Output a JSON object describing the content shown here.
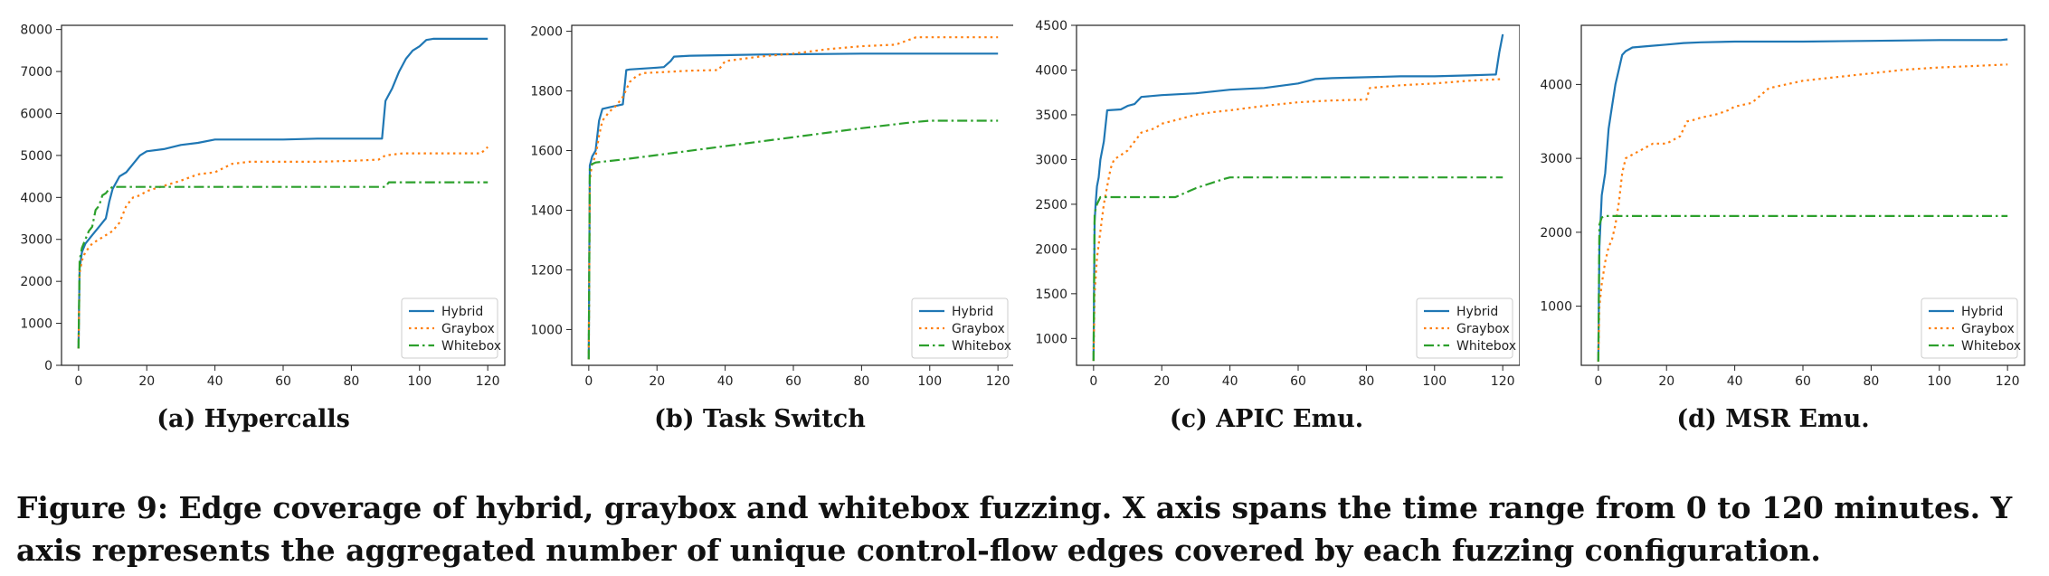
{
  "figure": {
    "caption": "Figure 9: Edge coverage of hybrid, graybox and whitebox fuzzing. X axis spans the time range from 0 to 120 minutes. Y axis represents the aggregated number of unique control-flow edges covered by each fuzzing configuration."
  },
  "colors": {
    "Hybrid": "#1f77b4",
    "Graybox": "#ff7f0e",
    "Whitebox": "#2ca02c"
  },
  "chart_data": [
    {
      "type": "line",
      "title": "(a) Hypercalls",
      "xlabel": "",
      "ylabel": "",
      "xlim": [
        -5,
        125
      ],
      "ylim": [
        0,
        8100
      ],
      "xticks": [
        0,
        20,
        40,
        60,
        80,
        100,
        120
      ],
      "yticks": [
        0,
        1000,
        2000,
        3000,
        4000,
        5000,
        6000,
        7000,
        8000
      ],
      "grid": false,
      "legend": "bottom-right",
      "series": [
        {
          "name": "Hybrid",
          "style": "solid",
          "x": [
            0,
            0.3,
            1,
            2,
            4,
            6,
            7,
            8,
            9,
            10,
            12,
            14,
            16,
            18,
            20,
            25,
            30,
            35,
            40,
            50,
            60,
            70,
            80,
            89,
            90,
            92,
            94,
            96,
            98,
            100,
            102,
            104,
            110,
            120
          ],
          "y": [
            400,
            2300,
            2700,
            2900,
            3100,
            3300,
            3400,
            3500,
            3900,
            4200,
            4500,
            4600,
            4800,
            5000,
            5100,
            5150,
            5250,
            5300,
            5380,
            5380,
            5380,
            5400,
            5400,
            5400,
            6300,
            6600,
            7000,
            7300,
            7500,
            7600,
            7750,
            7780,
            7780,
            7780
          ]
        },
        {
          "name": "Graybox",
          "style": "dotted",
          "x": [
            0,
            0.3,
            1,
            2,
            4,
            6,
            8,
            10,
            12,
            14,
            16,
            18,
            20,
            22,
            24,
            26,
            28,
            30,
            35,
            40,
            45,
            50,
            60,
            70,
            80,
            88,
            90,
            95,
            100,
            110,
            118,
            120
          ],
          "y": [
            400,
            2200,
            2500,
            2700,
            2900,
            3000,
            3100,
            3200,
            3400,
            3800,
            4000,
            4050,
            4150,
            4200,
            4250,
            4300,
            4350,
            4400,
            4550,
            4600,
            4800,
            4850,
            4850,
            4850,
            4870,
            4900,
            5000,
            5050,
            5050,
            5050,
            5050,
            5200
          ]
        },
        {
          "name": "Whitebox",
          "style": "dashdot",
          "x": [
            0,
            0.3,
            1,
            2,
            3,
            4,
            5,
            6,
            7,
            8,
            9,
            10,
            20,
            40,
            60,
            80,
            90,
            91,
            100,
            110,
            120
          ],
          "y": [
            400,
            2500,
            2800,
            3000,
            3200,
            3300,
            3700,
            3800,
            4050,
            4100,
            4200,
            4250,
            4250,
            4250,
            4250,
            4250,
            4250,
            4360,
            4360,
            4360,
            4360
          ]
        }
      ]
    },
    {
      "type": "line",
      "title": "(b) Task Switch",
      "xlabel": "",
      "ylabel": "",
      "xlim": [
        -5,
        125
      ],
      "ylim": [
        880,
        2020
      ],
      "xticks": [
        0,
        20,
        40,
        60,
        80,
        100,
        120
      ],
      "yticks": [
        1000,
        1200,
        1400,
        1600,
        1800,
        2000
      ],
      "grid": false,
      "legend": "bottom-right",
      "series": [
        {
          "name": "Hybrid",
          "style": "solid",
          "x": [
            0,
            0.3,
            1,
            2,
            3,
            4,
            6,
            8,
            10,
            11,
            12,
            16,
            20,
            22,
            24,
            25,
            30,
            40,
            50,
            60,
            70,
            80,
            90,
            100,
            110,
            120
          ],
          "y": [
            900,
            1550,
            1580,
            1600,
            1700,
            1740,
            1745,
            1750,
            1755,
            1870,
            1872,
            1875,
            1878,
            1880,
            1900,
            1915,
            1918,
            1920,
            1922,
            1923,
            1924,
            1925,
            1925,
            1925,
            1925,
            1925
          ]
        },
        {
          "name": "Graybox",
          "style": "dotted",
          "x": [
            0,
            0.3,
            1,
            2,
            3,
            4,
            6,
            8,
            10,
            12,
            14,
            16,
            20,
            30,
            38,
            40,
            50,
            60,
            70,
            80,
            90,
            96,
            100,
            110,
            120
          ],
          "y": [
            900,
            1500,
            1560,
            1580,
            1650,
            1700,
            1730,
            1750,
            1780,
            1830,
            1850,
            1860,
            1862,
            1868,
            1870,
            1900,
            1915,
            1925,
            1940,
            1950,
            1955,
            1980,
            1980,
            1980,
            1980
          ]
        },
        {
          "name": "Whitebox",
          "style": "dashdot",
          "x": [
            0,
            0.3,
            1,
            2,
            10,
            20,
            40,
            60,
            80,
            95,
            100,
            110,
            120
          ],
          "y": [
            900,
            1540,
            1555,
            1560,
            1570,
            1585,
            1615,
            1645,
            1675,
            1695,
            1700,
            1700,
            1700
          ]
        }
      ]
    },
    {
      "type": "line",
      "title": "(c) APIC Emu.",
      "xlabel": "",
      "ylabel": "",
      "xlim": [
        -5,
        125
      ],
      "ylim": [
        700,
        4500
      ],
      "xticks": [
        0,
        20,
        40,
        60,
        80,
        100,
        120
      ],
      "yticks": [
        1000,
        1500,
        2000,
        2500,
        3000,
        3500,
        4000,
        4500
      ],
      "grid": false,
      "legend": "bottom-right",
      "series": [
        {
          "name": "Hybrid",
          "style": "solid",
          "x": [
            0,
            0.3,
            0.6,
            1,
            1.5,
            2,
            3,
            4,
            8,
            10,
            12,
            14,
            20,
            30,
            40,
            50,
            60,
            65,
            70,
            80,
            90,
            100,
            110,
            118,
            119,
            120
          ],
          "y": [
            750,
            2300,
            2500,
            2700,
            2800,
            3000,
            3200,
            3550,
            3560,
            3600,
            3620,
            3700,
            3720,
            3740,
            3780,
            3800,
            3850,
            3900,
            3910,
            3920,
            3930,
            3930,
            3940,
            3950,
            4200,
            4400
          ]
        },
        {
          "name": "Graybox",
          "style": "dotted",
          "x": [
            0,
            0.3,
            1,
            2,
            3,
            4,
            5,
            6,
            8,
            10,
            12,
            14,
            18,
            20,
            25,
            30,
            35,
            40,
            50,
            60,
            70,
            80,
            81,
            90,
            100,
            110,
            120
          ],
          "y": [
            750,
            1500,
            1900,
            2200,
            2500,
            2700,
            2900,
            3000,
            3050,
            3100,
            3200,
            3300,
            3350,
            3400,
            3450,
            3500,
            3530,
            3550,
            3600,
            3640,
            3660,
            3670,
            3800,
            3830,
            3850,
            3880,
            3900
          ]
        },
        {
          "name": "Whitebox",
          "style": "dashdot",
          "x": [
            0,
            0.3,
            1,
            2,
            10,
            20,
            24,
            30,
            38,
            40,
            60,
            80,
            100,
            120
          ],
          "y": [
            750,
            2400,
            2500,
            2580,
            2580,
            2580,
            2580,
            2680,
            2780,
            2800,
            2800,
            2800,
            2800,
            2800
          ]
        }
      ]
    },
    {
      "type": "line",
      "title": "(d) MSR Emu.",
      "xlabel": "",
      "ylabel": "",
      "xlim": [
        -5,
        125
      ],
      "ylim": [
        200,
        4800
      ],
      "xticks": [
        0,
        20,
        40,
        60,
        80,
        100,
        120
      ],
      "yticks": [
        1000,
        2000,
        3000,
        4000
      ],
      "grid": false,
      "legend": "bottom-right",
      "series": [
        {
          "name": "Hybrid",
          "style": "solid",
          "x": [
            0,
            0.3,
            1,
            2,
            3,
            4,
            5,
            6,
            7,
            8,
            10,
            15,
            20,
            25,
            30,
            40,
            60,
            80,
            100,
            110,
            118,
            120
          ],
          "y": [
            250,
            1800,
            2500,
            2800,
            3400,
            3700,
            4000,
            4200,
            4400,
            4450,
            4500,
            4520,
            4540,
            4560,
            4570,
            4580,
            4580,
            4590,
            4600,
            4600,
            4600,
            4610
          ]
        },
        {
          "name": "Graybox",
          "style": "dotted",
          "x": [
            0,
            0.3,
            1,
            2,
            3,
            4,
            5,
            6,
            7,
            8,
            10,
            12,
            14,
            16,
            20,
            24,
            26,
            28,
            30,
            35,
            38,
            40,
            45,
            50,
            55,
            60,
            70,
            80,
            90,
            100,
            110,
            120
          ],
          "y": [
            250,
            1000,
            1300,
            1600,
            1800,
            1900,
            2100,
            2400,
            2800,
            3000,
            3050,
            3100,
            3150,
            3200,
            3200,
            3300,
            3500,
            3520,
            3550,
            3600,
            3650,
            3700,
            3750,
            3950,
            4000,
            4050,
            4100,
            4150,
            4200,
            4230,
            4250,
            4270
          ]
        },
        {
          "name": "Whitebox",
          "style": "dashdot",
          "x": [
            0,
            0.3,
            1,
            2,
            20,
            40,
            60,
            80,
            100,
            120
          ],
          "y": [
            250,
            2100,
            2200,
            2220,
            2220,
            2220,
            2220,
            2220,
            2220,
            2220
          ]
        }
      ]
    }
  ]
}
